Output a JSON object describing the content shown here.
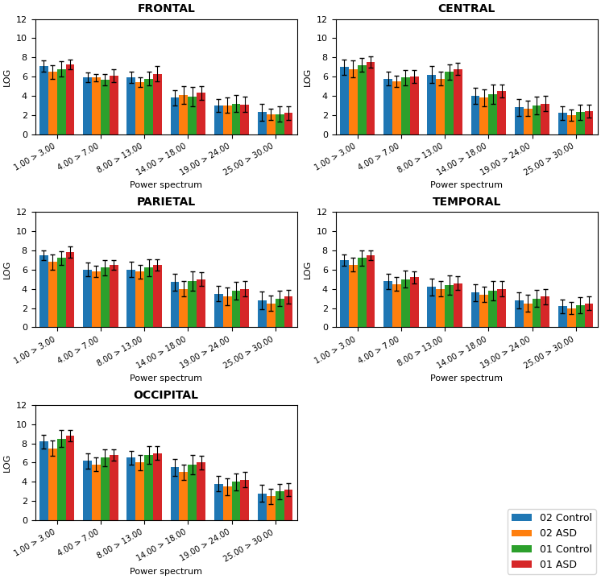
{
  "chart_data": [
    {
      "type": "bar",
      "title": "FRONTAL",
      "x_label": "Power spectrum",
      "y_label": "LOG",
      "categories": [
        "1.00 > 3.00",
        "4.00 > 7.00",
        "8.00 > 13.00",
        "14.00 > 18.00",
        "19.00 > 24.00",
        "25.00 > 30.00"
      ],
      "ylim": [
        0,
        12
      ],
      "yticks": [
        0,
        2,
        4,
        6,
        8,
        10,
        12
      ],
      "series": [
        {
          "name": "02 Control",
          "values": [
            7.1,
            5.9,
            5.9,
            3.8,
            3.0,
            2.3
          ],
          "errors": [
            0.6,
            0.5,
            0.6,
            0.8,
            0.7,
            0.9
          ]
        },
        {
          "name": "02 ASD",
          "values": [
            6.5,
            5.9,
            5.4,
            4.1,
            3.0,
            2.1
          ],
          "errors": [
            0.7,
            0.4,
            0.5,
            0.9,
            0.8,
            0.6
          ]
        },
        {
          "name": "01 Control",
          "values": [
            6.8,
            5.7,
            5.8,
            3.9,
            3.2,
            2.1
          ],
          "errors": [
            0.8,
            0.6,
            0.7,
            1.0,
            0.9,
            0.8
          ]
        },
        {
          "name": "01 ASD",
          "values": [
            7.3,
            6.1,
            6.3,
            4.3,
            3.1,
            2.2
          ],
          "errors": [
            0.5,
            0.7,
            0.8,
            0.7,
            0.8,
            0.7
          ]
        }
      ]
    },
    {
      "type": "bar",
      "title": "CENTRAL",
      "x_label": "Power spectrum",
      "y_label": "LOG",
      "categories": [
        "1.00 > 3.00",
        "4.00 > 7.00",
        "8.00 > 13.00",
        "14.00 > 18.00",
        "19.00 > 24.00",
        "25.00 > 30.00"
      ],
      "ylim": [
        0,
        12
      ],
      "yticks": [
        0,
        2,
        4,
        6,
        8,
        10,
        12
      ],
      "series": [
        {
          "name": "02 Control",
          "values": [
            7.0,
            5.8,
            6.2,
            4.0,
            2.8,
            2.2
          ],
          "errors": [
            0.8,
            0.7,
            0.9,
            0.8,
            0.9,
            0.7
          ]
        },
        {
          "name": "02 ASD",
          "values": [
            6.8,
            5.5,
            5.8,
            3.8,
            2.7,
            2.0
          ],
          "errors": [
            0.9,
            0.6,
            0.7,
            0.9,
            0.8,
            0.6
          ]
        },
        {
          "name": "01 Control",
          "values": [
            7.2,
            5.9,
            6.5,
            4.2,
            3.0,
            2.3
          ],
          "errors": [
            0.7,
            0.8,
            0.8,
            1.0,
            0.9,
            0.8
          ]
        },
        {
          "name": "01 ASD",
          "values": [
            7.5,
            6.0,
            6.8,
            4.5,
            3.2,
            2.4
          ],
          "errors": [
            0.6,
            0.7,
            0.6,
            0.7,
            0.8,
            0.7
          ]
        }
      ]
    },
    {
      "type": "bar",
      "title": "PARIETAL",
      "x_label": "Power spectrum",
      "y_label": "LOG",
      "categories": [
        "1.00 > 3.00",
        "4.00 > 7.00",
        "8.00 > 13.00",
        "14.00 > 18.00",
        "19.00 > 24.00",
        "25.00 > 30.00"
      ],
      "ylim": [
        0,
        12
      ],
      "yticks": [
        0,
        2,
        4,
        6,
        8,
        10,
        12
      ],
      "series": [
        {
          "name": "02 Control",
          "values": [
            7.5,
            6.0,
            6.0,
            4.7,
            3.5,
            2.8
          ],
          "errors": [
            0.5,
            0.7,
            0.8,
            0.9,
            0.8,
            0.9
          ]
        },
        {
          "name": "02 ASD",
          "values": [
            6.8,
            5.8,
            5.8,
            4.0,
            3.2,
            2.5
          ],
          "errors": [
            0.8,
            0.6,
            0.7,
            0.8,
            0.9,
            0.8
          ]
        },
        {
          "name": "01 Control",
          "values": [
            7.2,
            6.2,
            6.2,
            4.8,
            3.8,
            3.0
          ],
          "errors": [
            0.7,
            0.8,
            0.9,
            1.0,
            0.9,
            0.8
          ]
        },
        {
          "name": "01 ASD",
          "values": [
            7.8,
            6.5,
            6.5,
            5.0,
            4.0,
            3.2
          ],
          "errors": [
            0.6,
            0.5,
            0.6,
            0.7,
            0.8,
            0.7
          ]
        }
      ]
    },
    {
      "type": "bar",
      "title": "TEMPORAL",
      "x_label": "Power spectrum",
      "y_label": "LOG",
      "categories": [
        "1.00 > 3.00",
        "4.00 > 7.00",
        "8.00 > 13.00",
        "14.00 > 18.00",
        "19.00 > 24.00",
        "25.00 > 30.00"
      ],
      "ylim": [
        0,
        12
      ],
      "yticks": [
        0,
        2,
        4,
        6,
        8,
        10,
        12
      ],
      "series": [
        {
          "name": "02 Control",
          "values": [
            7.0,
            4.8,
            4.2,
            3.6,
            2.8,
            2.2
          ],
          "errors": [
            0.6,
            0.8,
            0.9,
            0.9,
            0.8,
            0.7
          ]
        },
        {
          "name": "02 ASD",
          "values": [
            6.5,
            4.5,
            4.0,
            3.4,
            2.5,
            2.0
          ],
          "errors": [
            0.7,
            0.7,
            0.8,
            0.8,
            0.9,
            0.6
          ]
        },
        {
          "name": "01 Control",
          "values": [
            7.2,
            5.0,
            4.4,
            3.8,
            3.0,
            2.3
          ],
          "errors": [
            0.8,
            0.9,
            1.0,
            1.0,
            0.9,
            0.8
          ]
        },
        {
          "name": "01 ASD",
          "values": [
            7.5,
            5.2,
            4.6,
            4.0,
            3.2,
            2.5
          ],
          "errors": [
            0.5,
            0.6,
            0.7,
            0.8,
            0.8,
            0.7
          ]
        }
      ]
    },
    {
      "type": "bar",
      "title": "OCCIPITAL",
      "x_label": "Power spectrum",
      "y_label": "LOG",
      "categories": [
        "1.00 > 3.00",
        "4.00 > 7.00",
        "8.00 > 13.00",
        "14.00 > 18.00",
        "19.00 > 24.00",
        "25.00 > 30.00"
      ],
      "ylim": [
        0,
        12
      ],
      "yticks": [
        0,
        2,
        4,
        6,
        8,
        10,
        12
      ],
      "legend": "lower right",
      "series": [
        {
          "name": "02 Control",
          "values": [
            8.2,
            6.2,
            6.5,
            5.5,
            3.8,
            2.8
          ],
          "errors": [
            0.7,
            0.8,
            0.7,
            0.9,
            0.8,
            0.9
          ]
        },
        {
          "name": "02 ASD",
          "values": [
            7.5,
            5.8,
            6.0,
            5.0,
            3.5,
            2.5
          ],
          "errors": [
            0.8,
            0.7,
            0.8,
            0.8,
            0.9,
            0.8
          ]
        },
        {
          "name": "01 Control",
          "values": [
            8.5,
            6.5,
            6.8,
            5.8,
            4.0,
            3.0
          ],
          "errors": [
            0.9,
            0.9,
            0.9,
            1.0,
            0.9,
            0.8
          ]
        },
        {
          "name": "01 ASD",
          "values": [
            8.8,
            6.8,
            7.0,
            6.0,
            4.2,
            3.2
          ],
          "errors": [
            0.6,
            0.6,
            0.7,
            0.7,
            0.8,
            0.7
          ]
        }
      ]
    }
  ]
}
